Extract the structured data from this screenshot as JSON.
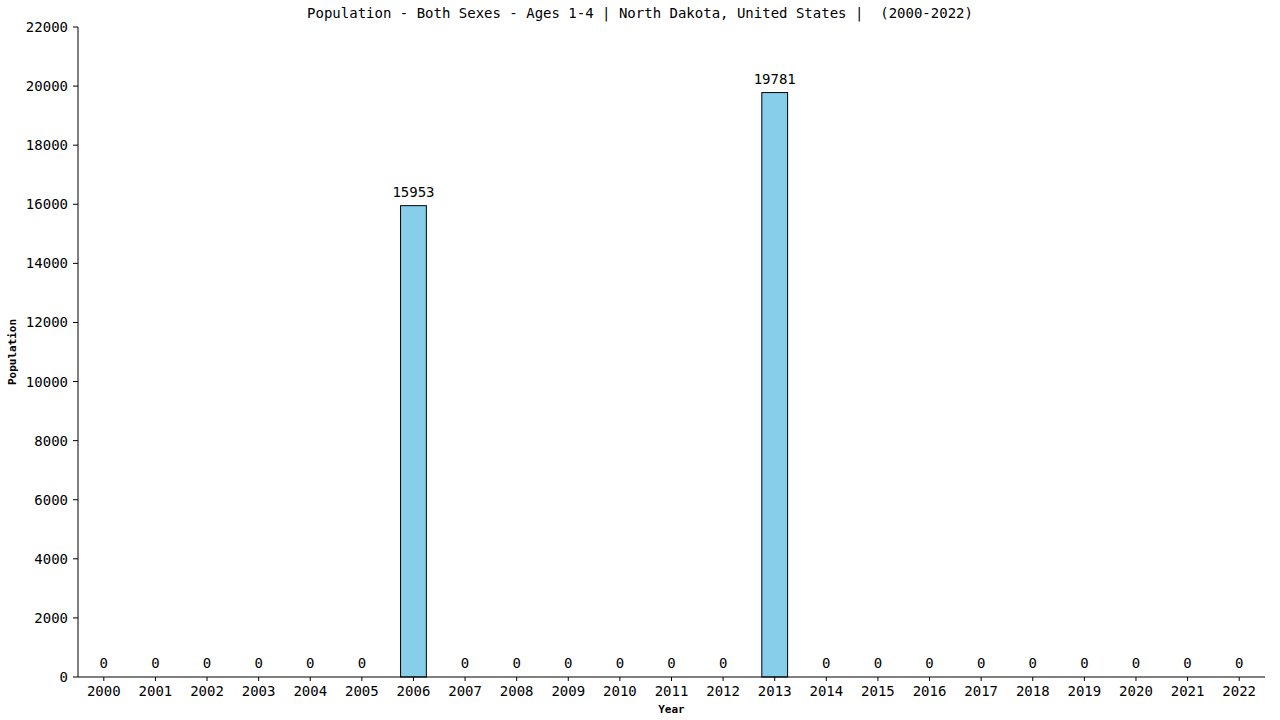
{
  "chart_data": {
    "type": "bar",
    "title": "Population - Both Sexes - Ages 1-4 | North Dakota, United States |  (2000-2022)",
    "x_label": "Year",
    "y_label": "Population",
    "categories": [
      "2000",
      "2001",
      "2002",
      "2003",
      "2004",
      "2005",
      "2006",
      "2007",
      "2008",
      "2009",
      "2010",
      "2011",
      "2012",
      "2013",
      "2014",
      "2015",
      "2016",
      "2017",
      "2018",
      "2019",
      "2020",
      "2021",
      "2022"
    ],
    "values": [
      0,
      0,
      0,
      0,
      0,
      0,
      15953,
      0,
      0,
      0,
      0,
      0,
      0,
      19781,
      0,
      0,
      0,
      0,
      0,
      0,
      0,
      0,
      0
    ],
    "color": "#87ceeb",
    "ylim": [
      0,
      22000
    ],
    "yticks": [
      0,
      2000,
      4000,
      6000,
      8000,
      10000,
      12000,
      14000,
      16000,
      18000,
      20000,
      22000
    ],
    "grid": false,
    "data_labels": true
  }
}
